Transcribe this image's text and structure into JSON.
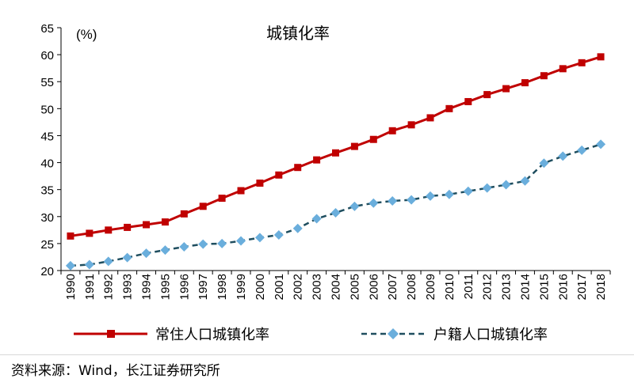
{
  "chart_data": {
    "type": "line",
    "title": "城镇化率",
    "unit_label": "(%)",
    "ylim": [
      20,
      65
    ],
    "yticks": [
      "20",
      "25",
      "30",
      "35",
      "40",
      "45",
      "50",
      "55",
      "60",
      "65"
    ],
    "x": [
      "1990",
      "1991",
      "1992",
      "1993",
      "1994",
      "1995",
      "1996",
      "1997",
      "1998",
      "1999",
      "2000",
      "2001",
      "2002",
      "2003",
      "2004",
      "2005",
      "2006",
      "2007",
      "2008",
      "2009",
      "2010",
      "2011",
      "2012",
      "2013",
      "2014",
      "2015",
      "2016",
      "2017",
      "2018"
    ],
    "series": [
      {
        "name": "常住人口城镇化率",
        "color": "#c00000",
        "marker": "square",
        "line_style": "solid",
        "values": [
          26.4,
          26.9,
          27.5,
          28.0,
          28.5,
          29.0,
          30.5,
          31.9,
          33.4,
          34.8,
          36.2,
          37.7,
          39.1,
          40.5,
          41.8,
          43.0,
          44.3,
          45.9,
          47.0,
          48.3,
          50.0,
          51.3,
          52.6,
          53.7,
          54.8,
          56.1,
          57.4,
          58.5,
          59.6
        ]
      },
      {
        "name": "户籍人口城镇化率",
        "color": "#1f4e5f",
        "marker_color": "#6aaedc",
        "marker": "diamond",
        "line_style": "dashed",
        "values": [
          20.9,
          21.1,
          21.7,
          22.4,
          23.2,
          23.8,
          24.4,
          24.9,
          25.0,
          25.5,
          26.1,
          26.6,
          27.8,
          29.6,
          30.7,
          31.9,
          32.5,
          32.9,
          33.1,
          33.8,
          34.1,
          34.7,
          35.3,
          35.9,
          36.6,
          39.9,
          41.2,
          42.3,
          43.4
        ]
      }
    ]
  },
  "source_text": "资料来源：Wind，长江证券研究所"
}
